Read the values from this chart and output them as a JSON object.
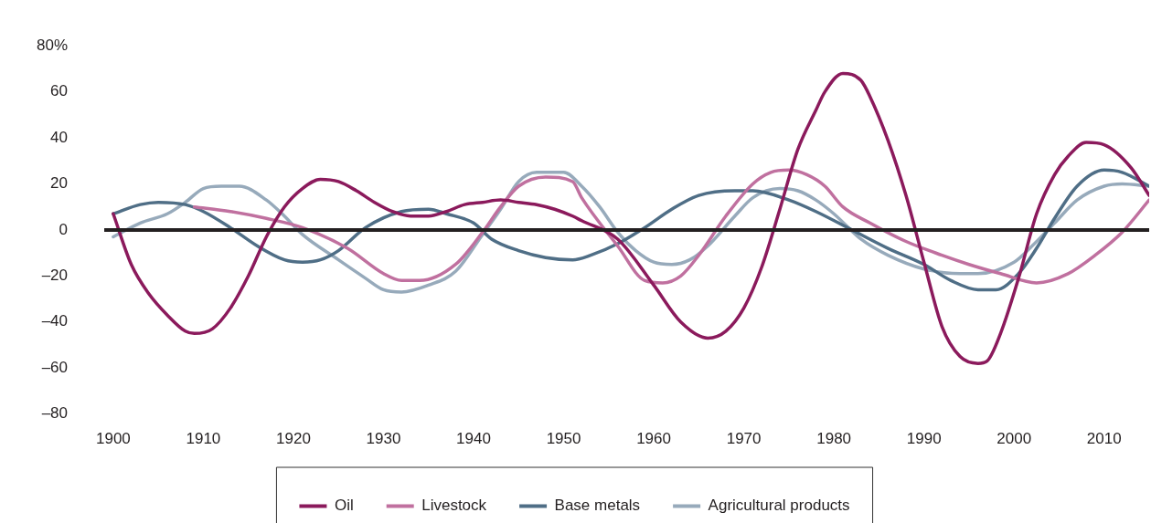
{
  "chart_data": {
    "type": "line",
    "xlim": [
      1899,
      2015
    ],
    "xticks": [
      1900,
      1910,
      1920,
      1930,
      1940,
      1950,
      1960,
      1970,
      1980,
      1990,
      2000,
      2010
    ],
    "ylim": [
      -80,
      80
    ],
    "yticks": [
      {
        "value": 80,
        "label": "80%"
      },
      60,
      40,
      20,
      0,
      {
        "value": -20,
        "label": "–20"
      },
      {
        "value": -40,
        "label": "–40"
      },
      {
        "value": -60,
        "label": "–60"
      },
      {
        "value": -80,
        "label": "–80"
      }
    ],
    "grid": false,
    "legend": "bottom",
    "marker": "none",
    "line_style": "solid",
    "ref_lines": [
      {
        "axis": "y",
        "value": 0,
        "color": "#231f20"
      }
    ],
    "series": [
      {
        "name": "Oil",
        "color": "#8b1a5c",
        "x": [
          1900,
          1902,
          1904,
          1906,
          1908,
          1909,
          1911,
          1913,
          1915,
          1917,
          1919,
          1921,
          1923,
          1925,
          1927,
          1929,
          1931,
          1933,
          1935,
          1937,
          1939,
          1941,
          1943,
          1945,
          1947,
          1949,
          1951,
          1952,
          1956,
          1960,
          1963,
          1966,
          1968,
          1970,
          1972,
          1974,
          1976,
          1978,
          1979,
          1981,
          1983,
          1984,
          1986,
          1988,
          1990,
          1992,
          1994,
          1996,
          1997,
          1998.5,
          2000.5,
          2002.5,
          2004.5,
          2006,
          2008,
          2010,
          2013,
          2015
        ],
        "values": [
          7,
          -15,
          -28,
          -37,
          -44,
          -45,
          -43,
          -34,
          -20,
          -3,
          10,
          18,
          22,
          21,
          17,
          12,
          8,
          6,
          6,
          8,
          11,
          12,
          13,
          12,
          11,
          9,
          6,
          4,
          -4,
          -24,
          -40,
          -47,
          -44,
          -34,
          -16,
          9,
          35,
          52,
          60,
          68,
          65,
          58,
          39,
          15,
          -14,
          -42,
          -55,
          -58,
          -57,
          -45,
          -21,
          7,
          24,
          32,
          38,
          37,
          27,
          15
        ]
      },
      {
        "name": "Livestock",
        "color": "#c0709f",
        "x": [
          1909,
          1913,
          1917,
          1921,
          1926,
          1930,
          1932,
          1934,
          1938,
          1941,
          1943,
          1945,
          1948,
          1951,
          1952,
          1956,
          1959,
          1961,
          1963,
          1965,
          1968,
          1971,
          1973,
          1975,
          1977,
          1979,
          1981,
          1984,
          1988,
          1992,
          1995,
          1998.5,
          2002.5,
          2006,
          2009,
          2012,
          2015
        ],
        "values": [
          10,
          8,
          5,
          1,
          -8,
          -19,
          -22,
          -22,
          -15,
          -1,
          10,
          19,
          23,
          21,
          14,
          -7,
          -22,
          -23,
          -20,
          -11,
          6,
          20,
          25,
          26,
          24,
          19,
          10,
          3,
          -5,
          -11,
          -15,
          -19,
          -23,
          -19,
          -11,
          -1,
          13
        ]
      },
      {
        "name": "Base metals",
        "color": "#4f6e86",
        "x": [
          1900,
          1903,
          1905,
          1908,
          1910,
          1913,
          1916,
          1919,
          1921,
          1923,
          1925,
          1928,
          1932,
          1935,
          1937,
          1940,
          1942,
          1945,
          1948,
          1951,
          1953,
          1956,
          1959,
          1962,
          1965,
          1969,
          1971,
          1975,
          1978,
          1982,
          1986,
          1990,
          1993,
          1996,
          1998,
          2000.5,
          2002.5,
          2004.5,
          2007,
          2010,
          2012,
          2015
        ],
        "values": [
          7,
          11,
          12,
          11,
          8,
          1,
          -7,
          -13,
          -14,
          -13,
          -9,
          1,
          8,
          9,
          7,
          3,
          -4,
          -9,
          -12,
          -13,
          -11,
          -6,
          1,
          9,
          15,
          17,
          17,
          13,
          8,
          0,
          -8,
          -15,
          -22,
          -26,
          -26,
          -19,
          -8,
          5,
          19,
          26,
          25,
          19
        ]
      },
      {
        "name": "Agricultural products",
        "color": "#97aabb",
        "x": [
          1900,
          1903,
          1906,
          1908,
          1910,
          1912,
          1914,
          1917,
          1919,
          1921,
          1925,
          1928,
          1930,
          1932,
          1935,
          1938,
          1941,
          1943,
          1945,
          1947,
          1949,
          1950,
          1952,
          1954,
          1956,
          1958,
          1960,
          1962,
          1964,
          1966,
          1969,
          1971,
          1974,
          1976,
          1978,
          1980,
          1983,
          1986,
          1990,
          1994,
          1996,
          2000,
          2002,
          2004.5,
          2007,
          2010,
          2012,
          2015
        ],
        "values": [
          -3,
          3,
          7,
          12,
          18,
          19,
          19,
          13,
          6,
          -2,
          -13,
          -21,
          -26,
          -27,
          -24,
          -18,
          -2,
          9,
          21,
          25,
          25,
          25,
          19,
          10,
          -1,
          -9,
          -14,
          -15,
          -13,
          -7,
          6,
          14,
          18,
          17,
          13,
          7,
          -4,
          -11,
          -17,
          -19,
          -19,
          -14,
          -7,
          3,
          13,
          19,
          20,
          19
        ]
      }
    ]
  }
}
